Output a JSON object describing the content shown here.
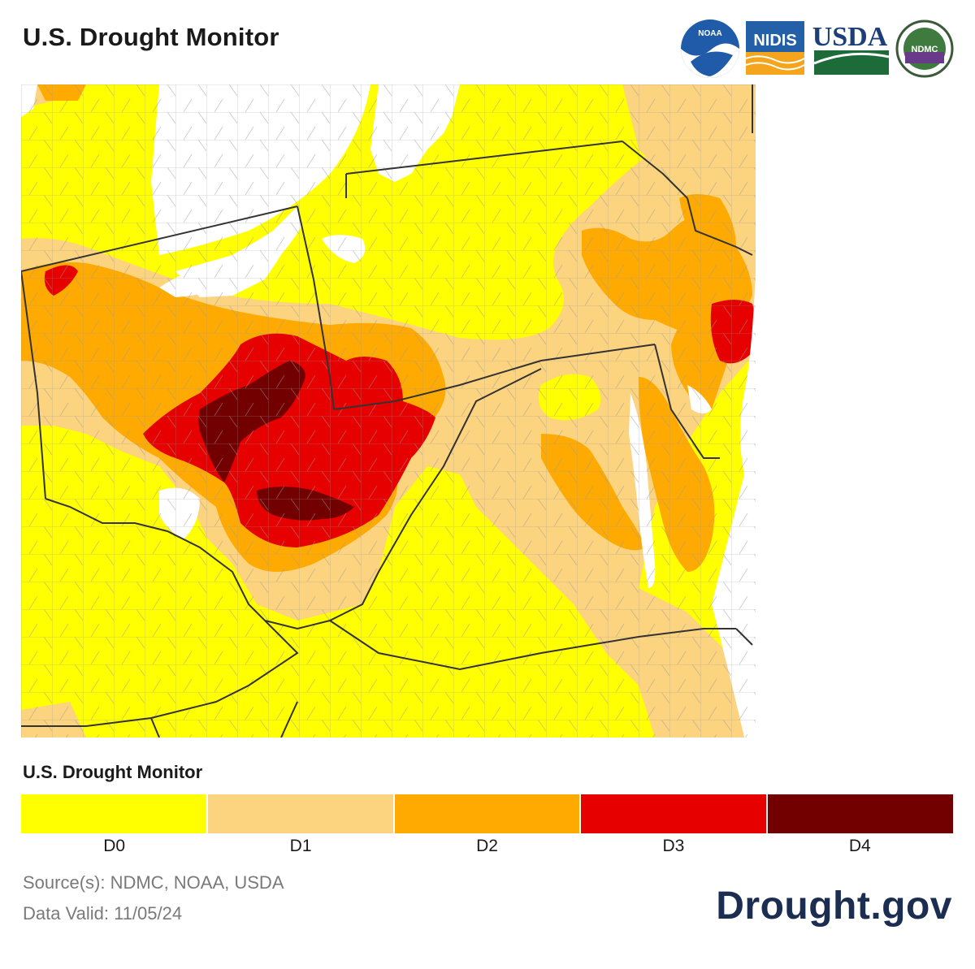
{
  "header": {
    "title": "U.S. Drought Monitor",
    "logos": [
      {
        "name": "noaa-logo",
        "text": "NOAA"
      },
      {
        "name": "nidis-logo",
        "text": "NIDIS"
      },
      {
        "name": "usda-logo",
        "text": "USDA"
      },
      {
        "name": "ndmc-logo",
        "text": "NDMC"
      }
    ]
  },
  "map": {
    "colors": {
      "none": "#ffffff",
      "D0": "#ffff00",
      "D1": "#fcd37f",
      "D2": "#ffaa00",
      "D3": "#e60000",
      "D4": "#730000",
      "border": "#333333",
      "county": "#9a9a9a"
    }
  },
  "legend": {
    "title": "U.S. Drought Monitor",
    "categories": [
      {
        "label": "D0",
        "color": "#ffff00"
      },
      {
        "label": "D1",
        "color": "#fcd37f"
      },
      {
        "label": "D2",
        "color": "#ffaa00"
      },
      {
        "label": "D3",
        "color": "#e60000"
      },
      {
        "label": "D4",
        "color": "#730000"
      }
    ]
  },
  "footer": {
    "source": "Source(s): NDMC, NOAA, USDA",
    "valid": "Data Valid: 11/05/24",
    "site": "Drought.gov"
  }
}
